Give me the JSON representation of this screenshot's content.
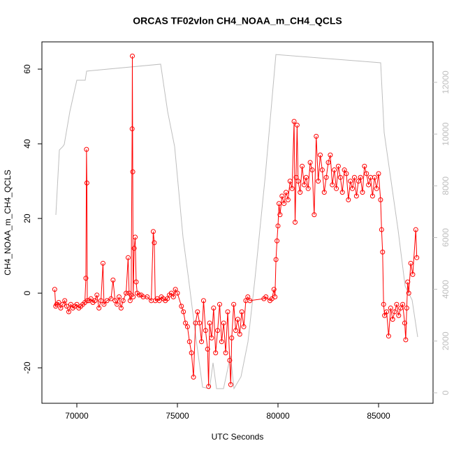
{
  "chart_data": {
    "type": "line",
    "title": "ORCAS TF02vlon CH4_NOAA_m_CH4_QCLS",
    "x_label": "UTC Seconds",
    "y_label": "CH4_NOAA_m_CH4_QCLS",
    "xlim": [
      68264,
      87708
    ],
    "xticks": [
      70000,
      75000,
      80000,
      85000
    ],
    "ylim": [
      -29.5,
      67.3
    ],
    "yticks": [
      -20,
      0,
      20,
      40,
      60
    ],
    "y2lim": [
      -405,
      13564
    ],
    "y2ticks": [
      0,
      2000,
      4000,
      6000,
      8000,
      10000,
      12000
    ],
    "series": [
      {
        "color": "#ff0000",
        "markers": true,
        "x": [
          68900,
          68950,
          69000,
          69100,
          69200,
          69300,
          69400,
          69500,
          69600,
          69700,
          69800,
          69900,
          70000,
          70100,
          70200,
          70300,
          70400,
          70450,
          70480,
          70500,
          70520,
          70600,
          70700,
          70800,
          70900,
          71000,
          71100,
          71200,
          71300,
          71350,
          71500,
          71700,
          71800,
          71900,
          72000,
          72100,
          72200,
          72300,
          72450,
          72550,
          72600,
          72650,
          72700,
          72750,
          72760,
          72780,
          72800,
          72850,
          72900,
          72950,
          73000,
          73100,
          73200,
          73300,
          73500,
          73700,
          73800,
          73850,
          73900,
          74000,
          74100,
          74200,
          74300,
          74400,
          74500,
          74600,
          74700,
          74800,
          74900,
          75000,
          75200,
          75300,
          75400,
          75500,
          75600,
          75700,
          75800,
          75900,
          76000,
          76100,
          76200,
          76300,
          76400,
          76500,
          76550,
          76600,
          76700,
          76800,
          76900,
          77000,
          77100,
          77200,
          77300,
          77400,
          77500,
          77600,
          77650,
          77700,
          77800,
          77900,
          78000,
          78100,
          78200,
          78300,
          78400,
          78500,
          78600,
          79300,
          79400,
          79600,
          79700,
          79800,
          79850,
          79900,
          79950,
          80000,
          80050,
          80100,
          80200,
          80300,
          80400,
          80500,
          80600,
          80700,
          80800,
          80850,
          80900,
          80950,
          81000,
          81100,
          81200,
          81300,
          81400,
          81500,
          81600,
          81700,
          81800,
          81900,
          82000,
          82100,
          82200,
          82300,
          82400,
          82500,
          82600,
          82700,
          82800,
          82900,
          83000,
          83100,
          83200,
          83300,
          83400,
          83500,
          83600,
          83700,
          83800,
          83900,
          84000,
          84100,
          84200,
          84300,
          84400,
          84500,
          84600,
          84700,
          84800,
          84900,
          85000,
          85100,
          85150,
          85200,
          85250,
          85300,
          85400,
          85500,
          85600,
          85700,
          85800,
          85900,
          86000,
          86100,
          86200,
          86300,
          86350,
          86400,
          86450,
          86500,
          86600,
          86700,
          86850,
          86900
        ],
        "values": [
          1,
          -3.5,
          -3,
          -2.5,
          -4,
          -3,
          -2,
          -3.5,
          -5,
          -3,
          -4,
          -3.5,
          -3,
          -4,
          -3.5,
          -3,
          -2.5,
          4,
          38.5,
          29.5,
          -2,
          -2,
          -1.5,
          -2.5,
          -2,
          -0.5,
          -4,
          -2,
          8,
          -3,
          -2,
          -1.5,
          3.5,
          -2,
          -3,
          -1,
          -4,
          -2,
          0,
          9.5,
          0,
          -2,
          -0.5,
          44,
          63.5,
          32.5,
          -1,
          12,
          15,
          3,
          0,
          -0.5,
          -0.5,
          -1,
          -1,
          -2,
          16.5,
          13.5,
          -2,
          -1.5,
          -2,
          -1,
          -1.5,
          -2,
          -1.5,
          -0.5,
          0,
          -1,
          1,
          0,
          -3.5,
          -5,
          -8,
          -9,
          -13,
          -16,
          -22.5,
          -8,
          -5,
          -8,
          -13,
          -2,
          -10,
          -15,
          -25,
          -8,
          -12,
          -4,
          -16,
          -10,
          -3,
          -13,
          -8,
          -16,
          -5,
          -18,
          -24.5,
          -12,
          -3,
          -10,
          -7,
          -11,
          -5,
          -9,
          -2,
          -1,
          -2,
          -1.5,
          -1,
          -2,
          -1.5,
          1,
          -1,
          9,
          14,
          18,
          24,
          21,
          26,
          24,
          27,
          25,
          30,
          28,
          46,
          19,
          31,
          45,
          30,
          27,
          34,
          29,
          31,
          28,
          35,
          33,
          21,
          42,
          30,
          37,
          33,
          27,
          31,
          35,
          37,
          29,
          33,
          28,
          34,
          31,
          27,
          33,
          32,
          25,
          30,
          28,
          31,
          26,
          30,
          31,
          27,
          34,
          32,
          29,
          31,
          26,
          31,
          28,
          32,
          25,
          17,
          11,
          -3,
          -6,
          -5,
          -11.5,
          -4,
          -7,
          -5,
          -3,
          -6,
          -4,
          -3,
          -8,
          -12.5,
          -4,
          3,
          0,
          8,
          5,
          17,
          9.5
        ]
      },
      {
        "color": "#bebebe",
        "axis": "y2",
        "x": [
          68958,
          69132,
          69306,
          69375,
          69653,
          70000,
          70417,
          70486,
          74167,
          74514,
          74861,
          75278,
          75556,
          75903,
          76250,
          76597,
          76771,
          76944,
          77292,
          77639,
          77813,
          78160,
          78507,
          78854,
          79375,
          79896,
          85104,
          85278,
          85625,
          85972,
          86319,
          86667,
          86944
        ],
        "values": [
          6877,
          9385,
          9520,
          9601,
          10868,
          12082,
          12082,
          12433,
          12702,
          10868,
          9520,
          6014,
          4396,
          2238,
          216,
          162,
          1160,
          162,
          162,
          1430,
          162,
          620,
          1969,
          4396,
          8441,
          13074,
          12756,
          10059,
          8171,
          6283,
          4126,
          3587,
          2157
        ]
      }
    ]
  }
}
